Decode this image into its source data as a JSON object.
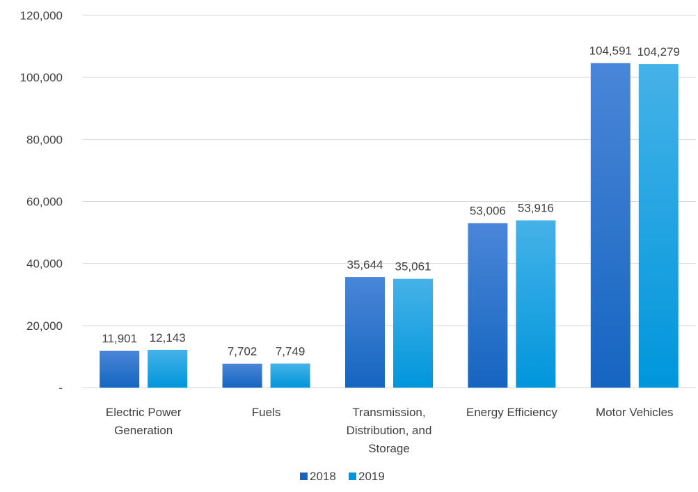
{
  "chart_data": {
    "type": "bar",
    "title": "",
    "xlabel": "",
    "ylabel": "",
    "categories": [
      [
        "Electric Power",
        "Generation"
      ],
      [
        "Fuels"
      ],
      [
        "Transmission,",
        "Distribution, and",
        "Storage"
      ],
      [
        "Energy Efficiency"
      ],
      [
        "Motor Vehicles"
      ]
    ],
    "series": [
      {
        "name": "2018",
        "color": "#1565C0",
        "color_light": "#4A86D8",
        "values": [
          11901,
          7702,
          35644,
          53006,
          104591
        ],
        "labels": [
          "11,901",
          "7,702",
          "35,644",
          "53,006",
          "104,591"
        ]
      },
      {
        "name": "2019",
        "color": "#0096DB",
        "color_light": "#45B2E8",
        "values": [
          12143,
          7749,
          35061,
          53916,
          104279
        ],
        "labels": [
          "12,143",
          "7,749",
          "35,061",
          "53,916",
          "104,279"
        ]
      }
    ],
    "ylim": [
      0,
      120000
    ],
    "y_ticks": [
      0,
      20000,
      40000,
      60000,
      80000,
      100000,
      120000
    ],
    "y_tick_labels": [
      "-",
      "20,000",
      "40,000",
      "60,000",
      "80,000",
      "100,000",
      "120,000"
    ],
    "grid": true,
    "legend_position": "bottom"
  }
}
